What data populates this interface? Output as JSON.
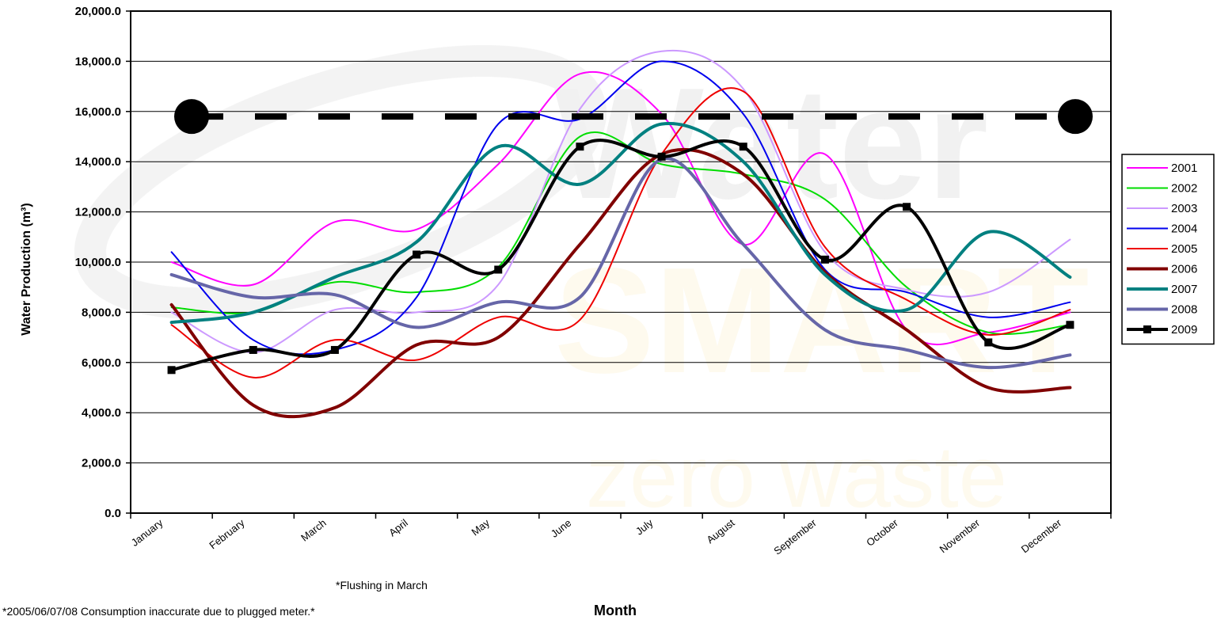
{
  "chart_data": {
    "type": "line",
    "xlabel": "Month",
    "ylabel": "Water Production (m³)",
    "ylim": [
      0,
      20000
    ],
    "y_ticks": [
      "0.0",
      "2,000.0",
      "4,000.0",
      "6,000.0",
      "8,000.0",
      "10,000.0",
      "12,000.0",
      "14,000.0",
      "16,000.0",
      "18,000.0",
      "20,000.0"
    ],
    "categories": [
      "January",
      "February",
      "March",
      "April",
      "May",
      "June",
      "July",
      "August",
      "September",
      "October",
      "November",
      "December"
    ],
    "grid": true,
    "legend_position": "right",
    "series": [
      {
        "name": "2001",
        "color": "#ff00ff",
        "width": 2,
        "marker": "none",
        "values": [
          10000,
          9100,
          11600,
          11300,
          13900,
          17500,
          15900,
          10700,
          14300,
          7300,
          7200,
          8000
        ]
      },
      {
        "name": "2002",
        "color": "#00dd00",
        "width": 2,
        "marker": "none",
        "values": [
          8200,
          8000,
          9200,
          8800,
          9800,
          15000,
          13900,
          13500,
          12500,
          9000,
          7200,
          7500
        ]
      },
      {
        "name": "2003",
        "color": "#cc99ff",
        "width": 2,
        "marker": "none",
        "values": [
          8000,
          6400,
          8100,
          8000,
          9100,
          16100,
          18400,
          16900,
          10400,
          8900,
          8800,
          10900
        ]
      },
      {
        "name": "2004",
        "color": "#0000ee",
        "width": 2,
        "marker": "none",
        "values": [
          10400,
          6900,
          6500,
          8600,
          15500,
          15700,
          18000,
          15900,
          9700,
          8800,
          7800,
          8400
        ]
      },
      {
        "name": "2005",
        "color": "#ee0000",
        "width": 2,
        "marker": "none",
        "values": [
          7500,
          5400,
          6900,
          6100,
          7800,
          7700,
          14300,
          16800,
          10600,
          8500,
          7100,
          8100
        ]
      },
      {
        "name": "2006",
        "color": "#800000",
        "width": 4,
        "marker": "none",
        "values": [
          8300,
          4300,
          4200,
          6700,
          7000,
          10700,
          14300,
          13500,
          9600,
          7300,
          5000,
          5000
        ]
      },
      {
        "name": "2007",
        "color": "#008080",
        "width": 4,
        "marker": "none",
        "values": [
          7600,
          8000,
          9400,
          10800,
          14600,
          13100,
          15500,
          14000,
          9500,
          8100,
          11200,
          9400
        ]
      },
      {
        "name": "2008",
        "color": "#6666a8",
        "width": 4,
        "marker": "none",
        "values": [
          9500,
          8600,
          8700,
          7400,
          8400,
          8600,
          14100,
          10700,
          7300,
          6500,
          5800,
          6300
        ]
      },
      {
        "name": "2009",
        "color": "#000000",
        "width": 4,
        "marker": "square",
        "values": [
          5700,
          6500,
          6500,
          10300,
          9700,
          14600,
          14200,
          14600,
          10100,
          12200,
          6800,
          7500
        ]
      }
    ],
    "reference_line": {
      "value": 15800,
      "style": "dashed",
      "color": "#000000",
      "end_markers": "circle"
    },
    "annotations": [
      "*Flushing in March",
      "*2005/06/07/08 Consumption inaccurate due to plugged meter.*"
    ],
    "watermark": {
      "line1": "Water",
      "line2": "SMART",
      "line3": "zero waste"
    }
  }
}
